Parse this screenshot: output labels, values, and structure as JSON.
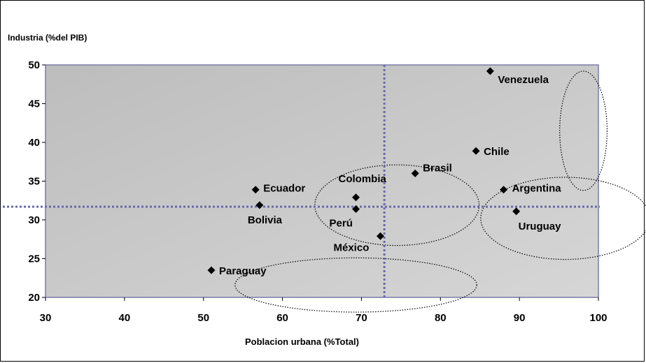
{
  "chart_data": {
    "type": "scatter",
    "title": "",
    "xlabel": "Poblacion urbana (%Total)",
    "ylabel": "Industria (%del PIB)",
    "xlim": [
      30,
      100
    ],
    "ylim": [
      20,
      50
    ],
    "xticks": [
      "30",
      "40",
      "50",
      "60",
      "70",
      "80",
      "90",
      "100"
    ],
    "yticks": [
      "20",
      "25",
      "30",
      "35",
      "40",
      "45",
      "50"
    ],
    "grid": false,
    "legend": "none",
    "points": [
      {
        "label": "Venezuela",
        "x": 86.3,
        "y": 49.2
      },
      {
        "label": "Chile",
        "x": 84.5,
        "y": 38.9
      },
      {
        "label": "Brasil",
        "x": 76.8,
        "y": 36.0
      },
      {
        "label": "Argentina",
        "x": 88.0,
        "y": 33.9
      },
      {
        "label": "Ecuador",
        "x": 56.6,
        "y": 33.9
      },
      {
        "label": "Colombia",
        "x": 69.3,
        "y": 32.9
      },
      {
        "label": "Bolivia",
        "x": 57.1,
        "y": 31.9
      },
      {
        "label": "Perú",
        "x": 69.3,
        "y": 31.4
      },
      {
        "label": "Uruguay",
        "x": 89.6,
        "y": 31.1
      },
      {
        "label": "México",
        "x": 72.4,
        "y": 27.9
      },
      {
        "label": "Paraguay",
        "x": 51.0,
        "y": 23.5
      }
    ],
    "reference_lines": {
      "x": 72.9,
      "y": 31.7
    },
    "colors": {
      "plot_bg": "#c8c8c8",
      "plot_border": "#7a7aa6",
      "ref_line": "#6a6aaa",
      "marker": "#000000"
    }
  }
}
